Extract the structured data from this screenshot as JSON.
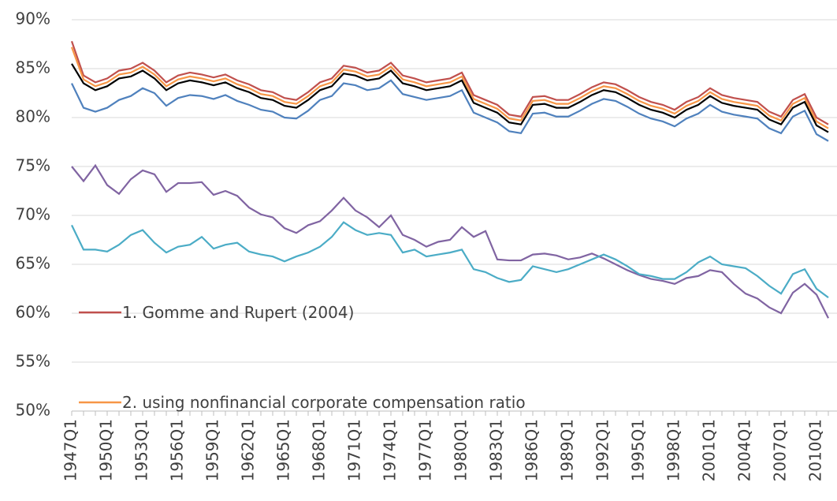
{
  "chart_data": {
    "type": "line",
    "categories": [
      "1947Q1",
      null,
      null,
      "1950Q1",
      null,
      null,
      "1953Q1",
      null,
      null,
      "1956Q1",
      null,
      null,
      "1959Q1",
      null,
      null,
      "1962Q1",
      null,
      null,
      "1965Q1",
      null,
      null,
      "1968Q1",
      null,
      null,
      "1971Q1",
      null,
      null,
      "1974Q1",
      null,
      null,
      "1977Q1",
      null,
      null,
      "1980Q1",
      null,
      null,
      "1983Q1",
      null,
      null,
      "1986Q1",
      null,
      null,
      "1989Q1",
      null,
      null,
      "1992Q1",
      null,
      null,
      "1995Q1",
      null,
      null,
      "1998Q1",
      null,
      null,
      "2001Q1",
      null,
      null,
      "2004Q1",
      null,
      null,
      "2007Q1",
      null,
      null,
      "2010Q1",
      null
    ],
    "ylim": [
      50,
      90
    ],
    "yticks": [
      {
        "value": 50,
        "label": "50%"
      },
      {
        "value": 55,
        "label": "55%"
      },
      {
        "value": 60,
        "label": "60%"
      },
      {
        "value": 65,
        "label": "65%"
      },
      {
        "value": 70,
        "label": "70%"
      },
      {
        "value": 75,
        "label": "75%"
      },
      {
        "value": 80,
        "label": "80%"
      },
      {
        "value": 85,
        "label": "85%"
      },
      {
        "value": 90,
        "label": "90%"
      }
    ],
    "grid": true,
    "series": [
      {
        "name": "1. Gomme and Rupert (2004)",
        "color": "#c0504d",
        "values": [
          87.8,
          84.3,
          83.6,
          84.0,
          84.8,
          85.0,
          85.6,
          84.8,
          83.6,
          84.3,
          84.6,
          84.4,
          84.1,
          84.4,
          83.8,
          83.4,
          82.8,
          82.6,
          82.0,
          81.8,
          82.6,
          83.6,
          84.0,
          85.3,
          85.1,
          84.6,
          84.8,
          85.6,
          84.3,
          84.0,
          83.6,
          83.8,
          84.0,
          84.6,
          82.3,
          81.8,
          81.3,
          80.3,
          80.1,
          82.1,
          82.2,
          81.8,
          81.8,
          82.4,
          83.1,
          83.6,
          83.4,
          82.8,
          82.1,
          81.6,
          81.3,
          80.8,
          81.6,
          82.1,
          83.0,
          82.3,
          82.0,
          81.8,
          81.6,
          80.6,
          80.1,
          81.8,
          82.4,
          80.0,
          79.3
        ]
      },
      {
        "name": "2. using nonfinancial corporate compensation ratio",
        "color": "#f79646",
        "values": [
          87.2,
          83.9,
          83.2,
          83.6,
          84.4,
          84.6,
          85.2,
          84.4,
          83.2,
          83.9,
          84.2,
          84.0,
          83.7,
          84.0,
          83.4,
          83.0,
          82.4,
          82.2,
          81.6,
          81.4,
          82.2,
          83.2,
          83.6,
          84.9,
          84.7,
          84.2,
          84.4,
          85.2,
          83.9,
          83.6,
          83.2,
          83.4,
          83.6,
          84.2,
          81.9,
          81.4,
          80.9,
          79.9,
          79.7,
          81.7,
          81.8,
          81.4,
          81.4,
          82.0,
          82.7,
          83.2,
          83.0,
          82.4,
          81.7,
          81.2,
          80.9,
          80.4,
          81.2,
          81.7,
          82.6,
          81.9,
          81.6,
          81.4,
          81.2,
          80.2,
          79.7,
          81.4,
          82.0,
          79.6,
          78.9
        ]
      },
      {
        "color": "#4f81bd",
        "values": [
          83.5,
          81.0,
          80.6,
          81.0,
          81.8,
          82.2,
          83.0,
          82.5,
          81.2,
          82.0,
          82.3,
          82.2,
          81.9,
          82.3,
          81.7,
          81.3,
          80.8,
          80.6,
          80.0,
          79.9,
          80.7,
          81.8,
          82.2,
          83.5,
          83.3,
          82.8,
          83.0,
          83.8,
          82.4,
          82.1,
          81.8,
          82.0,
          82.2,
          82.8,
          80.5,
          80.0,
          79.5,
          78.6,
          78.4,
          80.4,
          80.5,
          80.1,
          80.1,
          80.7,
          81.4,
          81.9,
          81.7,
          81.1,
          80.4,
          79.9,
          79.6,
          79.1,
          79.9,
          80.4,
          81.3,
          80.6,
          80.3,
          80.1,
          79.9,
          78.9,
          78.4,
          80.1,
          80.7,
          78.3,
          77.6
        ]
      },
      {
        "color": "#000000",
        "values": [
          85.5,
          83.5,
          82.8,
          83.2,
          84.0,
          84.2,
          84.8,
          84.0,
          82.8,
          83.5,
          83.8,
          83.6,
          83.3,
          83.6,
          83.0,
          82.6,
          82.0,
          81.8,
          81.2,
          81.0,
          81.8,
          82.8,
          83.2,
          84.5,
          84.3,
          83.8,
          84.0,
          84.8,
          83.5,
          83.2,
          82.8,
          83.0,
          83.2,
          83.8,
          81.5,
          81.0,
          80.5,
          79.5,
          79.3,
          81.3,
          81.4,
          81.0,
          81.0,
          81.6,
          82.3,
          82.8,
          82.6,
          82.0,
          81.3,
          80.8,
          80.5,
          80.0,
          80.8,
          81.3,
          82.2,
          81.5,
          81.2,
          81.0,
          80.8,
          79.8,
          79.3,
          81.0,
          81.6,
          79.2,
          78.5
        ]
      },
      {
        "color": "#8064a2",
        "values": [
          75.0,
          73.5,
          75.1,
          73.1,
          72.2,
          73.7,
          74.6,
          74.2,
          72.4,
          73.3,
          73.3,
          73.4,
          72.1,
          72.5,
          72.0,
          70.8,
          70.1,
          69.8,
          68.7,
          68.2,
          69.0,
          69.4,
          70.5,
          71.8,
          70.5,
          69.8,
          68.8,
          70.0,
          68.0,
          67.5,
          66.8,
          67.3,
          67.5,
          68.8,
          67.8,
          68.4,
          65.5,
          65.4,
          65.4,
          66.0,
          66.1,
          65.9,
          65.5,
          65.7,
          66.1,
          65.6,
          65.0,
          64.4,
          63.9,
          63.5,
          63.3,
          63.0,
          63.6,
          63.8,
          64.4,
          64.2,
          63.0,
          62.0,
          61.5,
          60.6,
          60.0,
          62.1,
          63.0,
          61.9,
          59.5
        ]
      },
      {
        "color": "#4bacc6",
        "values": [
          69.0,
          66.5,
          66.5,
          66.3,
          67.0,
          68.0,
          68.5,
          67.2,
          66.2,
          66.8,
          67.0,
          67.8,
          66.6,
          67.0,
          67.2,
          66.3,
          66.0,
          65.8,
          65.3,
          65.8,
          66.2,
          66.8,
          67.8,
          69.3,
          68.5,
          68.0,
          68.2,
          68.0,
          66.2,
          66.5,
          65.8,
          66.0,
          66.2,
          66.5,
          64.5,
          64.2,
          63.6,
          63.2,
          63.4,
          64.8,
          64.5,
          64.2,
          64.5,
          65.0,
          65.5,
          66.0,
          65.5,
          64.8,
          64.0,
          63.8,
          63.5,
          63.5,
          64.2,
          65.2,
          65.8,
          65.0,
          64.8,
          64.6,
          63.8,
          62.8,
          62.0,
          64.0,
          64.5,
          62.5,
          61.6
        ]
      }
    ]
  }
}
